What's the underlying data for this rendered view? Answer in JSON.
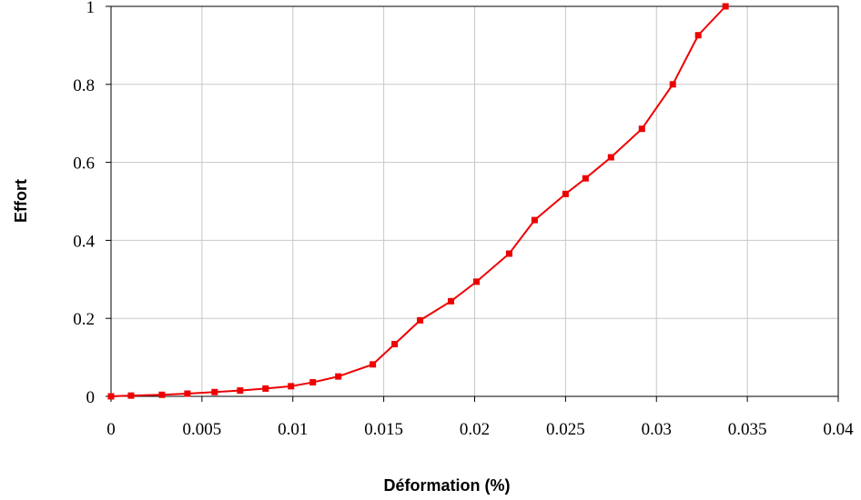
{
  "chart_data": {
    "type": "line",
    "title": "",
    "xlabel": "Déformation (%)",
    "ylabel": "Effort",
    "xlim": [
      0,
      0.04
    ],
    "ylim": [
      0,
      1
    ],
    "xticks": [
      "0",
      "0.005",
      "0.01",
      "0.015",
      "0.02",
      "0.025",
      "0.03",
      "0.035",
      "0.04"
    ],
    "yticks": [
      "0",
      "0.2",
      "0.4",
      "0.6",
      "0.8",
      "1"
    ],
    "grid": true,
    "legend": "none",
    "series": [
      {
        "color": "#ee0000",
        "marker": "square",
        "points": [
          [
            0.0,
            0.0
          ],
          [
            0.0011,
            0.002
          ],
          [
            0.0028,
            0.004
          ],
          [
            0.0042,
            0.007
          ],
          [
            0.0057,
            0.011
          ],
          [
            0.0071,
            0.015
          ],
          [
            0.0085,
            0.02
          ],
          [
            0.0099,
            0.026
          ],
          [
            0.0111,
            0.036
          ],
          [
            0.0125,
            0.051
          ],
          [
            0.0144,
            0.082
          ],
          [
            0.0156,
            0.134
          ],
          [
            0.017,
            0.195
          ],
          [
            0.0187,
            0.244
          ],
          [
            0.0201,
            0.294
          ],
          [
            0.0219,
            0.366
          ],
          [
            0.0233,
            0.452
          ],
          [
            0.025,
            0.519
          ],
          [
            0.0261,
            0.559
          ],
          [
            0.0275,
            0.613
          ],
          [
            0.0292,
            0.686
          ],
          [
            0.0309,
            0.8
          ],
          [
            0.0323,
            0.926
          ],
          [
            0.0338,
            1.0
          ]
        ]
      }
    ]
  }
}
